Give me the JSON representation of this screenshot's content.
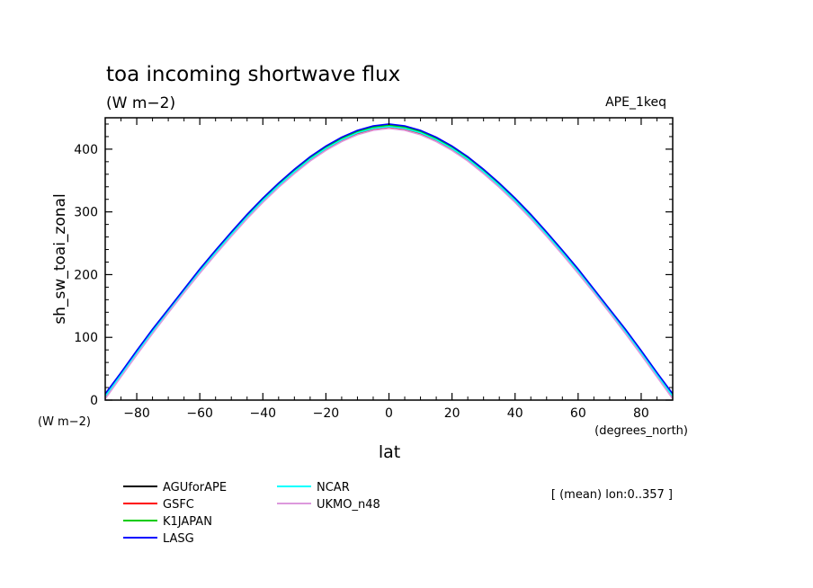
{
  "chart_data": {
    "type": "line",
    "title": "toa incoming shortwave flux",
    "units": "(W m−2)",
    "run_label": "APE_1keq",
    "ylabel": "sh_sw_toai_zonal",
    "xlabel": "lat",
    "x_units": "(degrees_north)",
    "y_units": "(W m−2)",
    "note": "[ (mean) lon:0..357 ]",
    "xlim": [
      -90,
      90
    ],
    "ylim": [
      0,
      450
    ],
    "x_ticks": [
      -80,
      -60,
      -40,
      -20,
      0,
      20,
      40,
      60,
      80
    ],
    "y_ticks": [
      0,
      100,
      200,
      300,
      400
    ],
    "x_tick_labels": [
      "−80",
      "−60",
      "−40",
      "−20",
      "0",
      "20",
      "40",
      "60",
      "80"
    ],
    "y_tick_labels": [
      "0",
      "100",
      "200",
      "300",
      "400"
    ],
    "x": [
      -90,
      -85,
      -80,
      -75,
      -70,
      -65,
      -60,
      -55,
      -50,
      -45,
      -40,
      -35,
      -30,
      -25,
      -20,
      -15,
      -10,
      -5,
      0,
      5,
      10,
      15,
      20,
      25,
      30,
      35,
      40,
      45,
      50,
      55,
      60,
      65,
      70,
      75,
      80,
      85,
      90
    ],
    "series": [
      {
        "name": "AGUforAPE",
        "color": "#000000",
        "values": [
          8,
          42,
          77,
          111,
          143,
          175,
          207,
          237,
          266,
          294,
          320,
          344,
          366,
          386,
          403,
          417,
          428,
          435,
          438,
          435,
          428,
          417,
          403,
          386,
          366,
          344,
          320,
          294,
          266,
          237,
          207,
          175,
          143,
          111,
          77,
          42,
          8
        ]
      },
      {
        "name": "GSFC",
        "color": "#ff0000",
        "values": [
          4,
          39,
          74,
          108,
          140,
          172,
          203,
          233,
          262,
          290,
          316,
          340,
          362,
          382,
          399,
          413,
          424,
          431,
          434,
          431,
          424,
          413,
          399,
          382,
          362,
          340,
          316,
          290,
          262,
          233,
          203,
          172,
          140,
          108,
          74,
          39,
          4
        ]
      },
      {
        "name": "K1JAPAN",
        "color": "#00cc00",
        "values": [
          8,
          42,
          77,
          111,
          143,
          175,
          207,
          237,
          266,
          294,
          320,
          344,
          366,
          386,
          403,
          417,
          428,
          435,
          438,
          435,
          428,
          417,
          403,
          386,
          366,
          344,
          320,
          294,
          266,
          237,
          207,
          175,
          143,
          111,
          77,
          42,
          8
        ]
      },
      {
        "name": "LASG",
        "color": "#0000ff",
        "values": [
          10,
          44,
          79,
          113,
          145,
          177,
          209,
          239,
          268,
          296,
          322,
          346,
          368,
          388,
          405,
          419,
          430,
          437,
          440,
          437,
          430,
          419,
          405,
          388,
          368,
          346,
          322,
          296,
          268,
          239,
          209,
          177,
          145,
          113,
          79,
          44,
          10
        ]
      },
      {
        "name": "NCAR",
        "color": "#00ffff",
        "values": [
          6,
          40,
          75,
          109,
          141,
          173,
          205,
          235,
          264,
          292,
          318,
          342,
          364,
          384,
          401,
          415,
          426,
          433,
          436,
          433,
          426,
          415,
          401,
          384,
          364,
          342,
          318,
          292,
          264,
          235,
          205,
          173,
          141,
          109,
          75,
          40,
          6
        ]
      },
      {
        "name": "UKMO_n48",
        "color": "#dd99dd",
        "values": [
          2,
          37,
          72,
          106,
          139,
          171,
          202,
          232,
          261,
          289,
          315,
          339,
          361,
          381,
          398,
          412,
          423,
          430,
          433,
          430,
          423,
          412,
          398,
          381,
          361,
          339,
          315,
          289,
          261,
          232,
          202,
          171,
          139,
          106,
          72,
          37,
          2
        ]
      }
    ],
    "grid": false,
    "legend_position": "bottom-left"
  }
}
